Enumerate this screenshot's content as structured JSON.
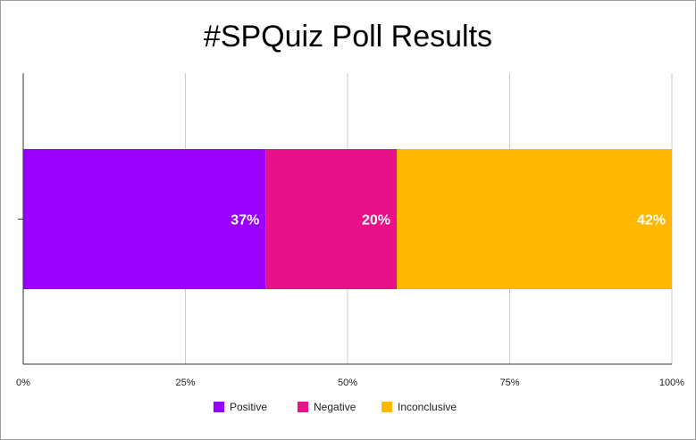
{
  "chart_data": {
    "type": "bar",
    "orientation": "horizontal",
    "stacked": true,
    "percent_stacked": true,
    "title": "#SPQuiz Poll Results",
    "categories": [
      ""
    ],
    "series": [
      {
        "name": "Positive",
        "values": [
          37
        ],
        "label": "37%",
        "color": "#9900ff"
      },
      {
        "name": "Negative",
        "values": [
          20
        ],
        "label": "20%",
        "color": "#e8118a"
      },
      {
        "name": "Inconclusive",
        "values": [
          42
        ],
        "label": "42%",
        "color": "#ffb700"
      }
    ],
    "xlim": [
      0,
      100
    ],
    "x_ticks": [
      "0%",
      "25%",
      "50%",
      "75%",
      "100%"
    ],
    "xlabel": "",
    "ylabel": "",
    "grid": true,
    "legend": "bottom"
  }
}
